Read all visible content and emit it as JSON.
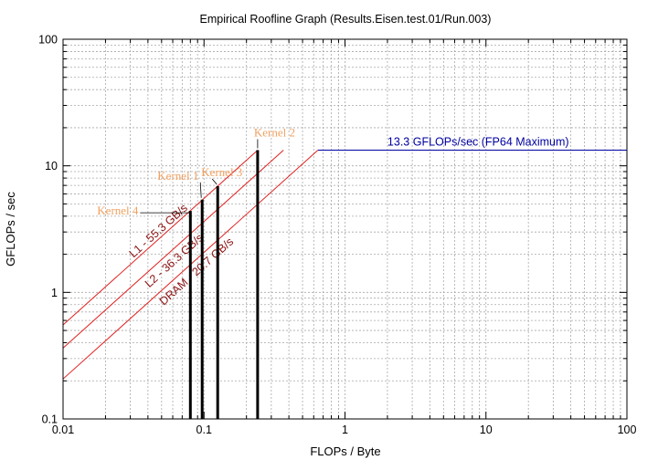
{
  "chart_data": {
    "type": "line",
    "title": "Empirical Roofline Graph (Results.Eisen.test.01/Run.003)",
    "xlabel": "FLOPs / Byte",
    "ylabel": "GFLOPs / sec",
    "xscale": "log",
    "yscale": "log",
    "xlim": [
      0.01,
      100
    ],
    "ylim": [
      0.1,
      100
    ],
    "grid": true,
    "x_ticks": [
      {
        "value": 0.01,
        "label": "0.01"
      },
      {
        "value": 0.1,
        "label": "0.1"
      },
      {
        "value": 1,
        "label": "1"
      },
      {
        "value": 10,
        "label": "10"
      },
      {
        "value": 100,
        "label": "100"
      }
    ],
    "y_ticks": [
      {
        "value": 0.1,
        "label": "0.1"
      },
      {
        "value": 1,
        "label": "1"
      },
      {
        "value": 10,
        "label": "10"
      },
      {
        "value": 100,
        "label": "100"
      }
    ],
    "compute_ceiling": {
      "label": "13.3 GFLOPs/sec (FP64 Maximum)",
      "gflops": 13.3,
      "color": "#0000a0"
    },
    "bandwidth_ceilings": [
      {
        "label": "L1 - 55.3 GB/s",
        "bandwidth": 55.3,
        "color": "#e02020"
      },
      {
        "label": "L2 - 36.3 GB/s",
        "bandwidth": 36.3,
        "color": "#e02020"
      },
      {
        "label": "DRAM - 20.7 GB/s",
        "bandwidth": 20.7,
        "color": "#e02020"
      }
    ],
    "kernels": [
      {
        "name": "Kernel 4",
        "intensity": 0.08,
        "gflops": 4.4
      },
      {
        "name": "Kernel 1",
        "intensity": 0.097,
        "gflops": 5.4
      },
      {
        "name": "Kernel 3",
        "intensity": 0.125,
        "gflops": 6.9
      },
      {
        "name": "Kernel 2",
        "intensity": 0.24,
        "gflops": 13.3
      }
    ],
    "kernel_label_color": "#f0a060",
    "kernel_bar_color": "#000000"
  }
}
